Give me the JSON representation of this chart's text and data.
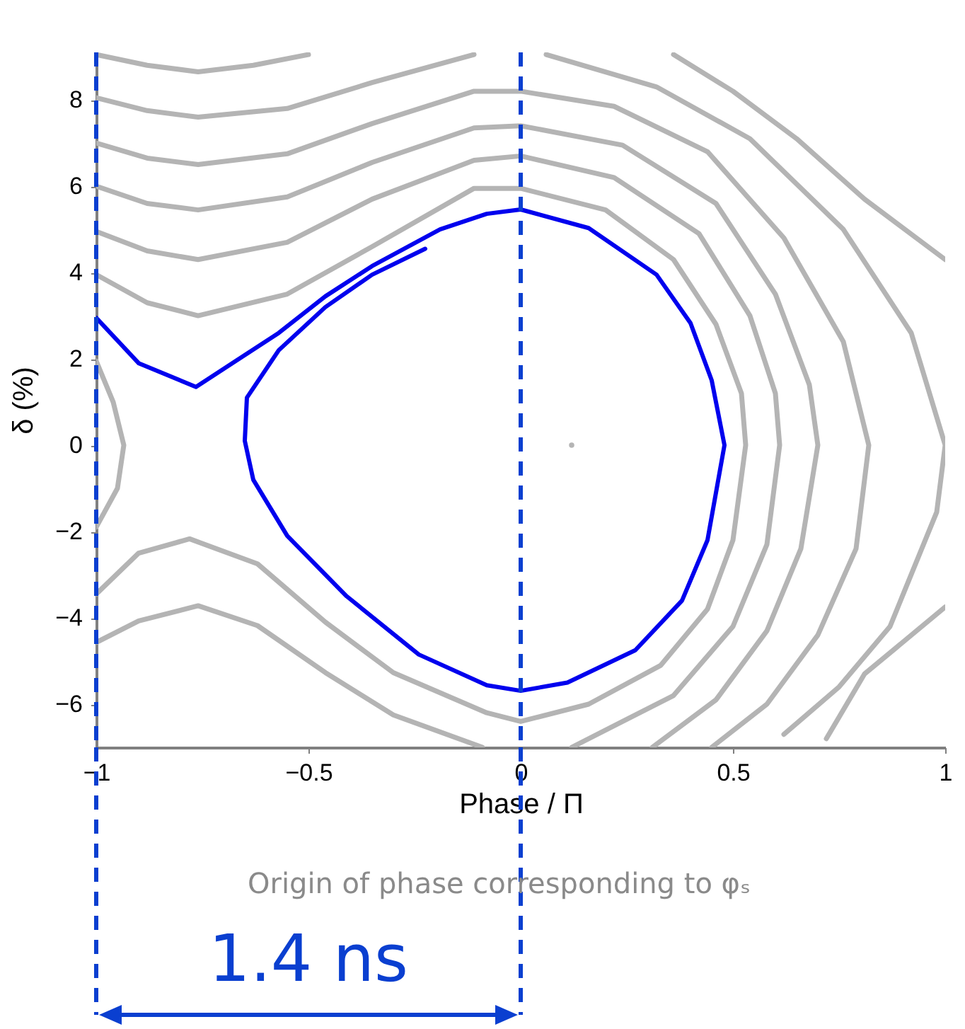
{
  "chart_data": {
    "type": "line",
    "xlabel": "Phase / Π",
    "ylabel": "δ (%)",
    "xlim": [
      -1,
      1
    ],
    "ylim": [
      -7,
      9.1
    ],
    "xticks": [
      -1,
      -0.5,
      0,
      0.5,
      1
    ],
    "yticks": [
      -6,
      -4,
      -2,
      0,
      2,
      4,
      6,
      8
    ],
    "grid": false,
    "line_style": "solid",
    "series": [
      {
        "color": "#b4b4b4",
        "x": [
          -1,
          -0.88,
          -0.76,
          -0.63,
          -0.5
        ],
        "values": [
          9.05,
          8.8,
          8.65,
          8.8,
          9.05
        ]
      },
      {
        "color": "#b4b4b4",
        "x": [
          0.36,
          0.5,
          0.65,
          0.81,
          1.0
        ],
        "values": [
          9.05,
          8.2,
          7.1,
          5.7,
          4.3
        ]
      },
      {
        "color": "#b4b4b4",
        "x": [
          1.0,
          0.81,
          0.72
        ],
        "values": [
          -3.75,
          -5.3,
          -6.8
        ]
      },
      {
        "color": "#b4b4b4",
        "x": [
          -1,
          -0.88,
          -0.76,
          -0.55,
          -0.35,
          -0.11
        ],
        "values": [
          8.05,
          7.75,
          7.6,
          7.8,
          8.4,
          9.05
        ]
      },
      {
        "color": "#b4b4b4",
        "x": [
          0.06,
          0.32,
          0.54,
          0.76,
          0.92,
          1.0,
          0.98,
          0.87,
          0.75,
          0.62
        ],
        "values": [
          9.05,
          8.3,
          7.1,
          5.0,
          2.6,
          0,
          -1.55,
          -4.2,
          -5.6,
          -6.7
        ]
      },
      {
        "color": "#b4b4b4",
        "x": [
          -1,
          -0.88,
          -0.76,
          -0.55,
          -0.35,
          -0.11,
          0,
          0.22,
          0.44,
          0.62,
          0.76,
          0.82,
          0.79,
          0.7,
          0.58,
          0.45
        ],
        "values": [
          7.0,
          6.65,
          6.5,
          6.75,
          7.45,
          8.2,
          8.2,
          7.85,
          6.8,
          4.8,
          2.4,
          0,
          -2.4,
          -4.4,
          -6.0,
          -7.0
        ]
      },
      {
        "color": "#b4b4b4",
        "x": [
          -1,
          -0.88,
          -0.76,
          -0.55,
          -0.35,
          -0.11,
          0,
          0.24,
          0.46,
          0.6,
          0.68,
          0.7,
          0.66,
          0.58,
          0.46,
          0.31
        ],
        "values": [
          6.0,
          5.6,
          5.45,
          5.75,
          6.55,
          7.35,
          7.4,
          6.95,
          5.6,
          3.5,
          1.4,
          0,
          -2.4,
          -4.3,
          -5.9,
          -7.0
        ]
      },
      {
        "color": "#b4b4b4",
        "x": [
          -1,
          -0.88,
          -0.76,
          -0.55,
          -0.35,
          -0.11,
          0,
          0.22,
          0.42,
          0.54,
          0.6,
          0.61,
          0.58,
          0.5,
          0.36,
          0.12
        ],
        "values": [
          4.95,
          4.5,
          4.3,
          4.7,
          5.7,
          6.6,
          6.7,
          6.2,
          4.9,
          3.0,
          1.2,
          0,
          -2.3,
          -4.2,
          -5.8,
          -7.0
        ]
      },
      {
        "color": "#b4b4b4",
        "x": [
          -1,
          -0.88,
          -0.76,
          -0.55,
          -0.35,
          -0.11,
          0,
          0.2,
          0.36,
          0.46,
          0.52,
          0.53,
          0.5,
          0.44,
          0.33,
          0.16,
          0,
          -0.08,
          -0.3,
          -0.46,
          -0.62,
          -0.78,
          -0.9,
          -1
        ],
        "values": [
          3.95,
          3.3,
          3.0,
          3.5,
          4.6,
          5.95,
          5.95,
          5.45,
          4.3,
          2.8,
          1.2,
          0,
          -2.2,
          -3.8,
          -5.1,
          -6.0,
          -6.4,
          -6.2,
          -5.27,
          -4.1,
          -2.75,
          -2.17,
          -2.5,
          -3.45
        ]
      },
      {
        "color": "#b4b4b4",
        "x": [
          -1,
          -0.9,
          -0.76,
          -0.62,
          -0.46,
          -0.3,
          -0.09
        ],
        "values": [
          -4.57,
          -4.07,
          -3.72,
          -4.18,
          -5.27,
          -6.25,
          -7.0
        ]
      },
      {
        "color": "#b4b4b4",
        "x": [
          -1,
          -0.96,
          -0.935,
          -0.95,
          -1
        ],
        "values": [
          1.95,
          1.0,
          0,
          -1.0,
          -1.9
        ]
      },
      {
        "color": "#0000ee",
        "x": [
          -1,
          -0.9,
          -0.765,
          -0.57,
          -0.46,
          -0.35,
          -0.19,
          -0.08,
          0,
          0.16,
          0.32,
          0.4,
          0.45,
          0.48,
          0.44,
          0.38,
          0.27,
          0.11,
          0,
          -0.08,
          -0.24,
          -0.41,
          -0.55,
          -0.63,
          -0.65,
          -0.645,
          -0.57,
          -0.46,
          -0.35,
          -0.225
        ],
        "values": [
          2.95,
          1.9,
          1.35,
          2.6,
          3.45,
          4.15,
          5.0,
          5.36,
          5.46,
          5.03,
          3.95,
          2.83,
          1.5,
          0,
          -2.2,
          -3.6,
          -4.75,
          -5.5,
          -5.69,
          -5.56,
          -4.85,
          -3.5,
          -2.1,
          -0.8,
          0.1,
          1.1,
          2.2,
          3.2,
          3.95,
          4.55
        ]
      },
      {
        "type": "scatter",
        "marker": "circle",
        "color": "#b4b4b4",
        "x": [
          0.12
        ],
        "values": [
          0
        ]
      }
    ],
    "ref_lines": [
      {
        "axis": "x",
        "value": -1,
        "color": "#0a3fd0",
        "line_style": "dashed"
      },
      {
        "axis": "x",
        "value": 0,
        "color": "#0a3fd0",
        "line_style": "dashed"
      }
    ],
    "annotations": [
      "Origin of phase corresponding to φₛ",
      "1.4 ns"
    ]
  }
}
